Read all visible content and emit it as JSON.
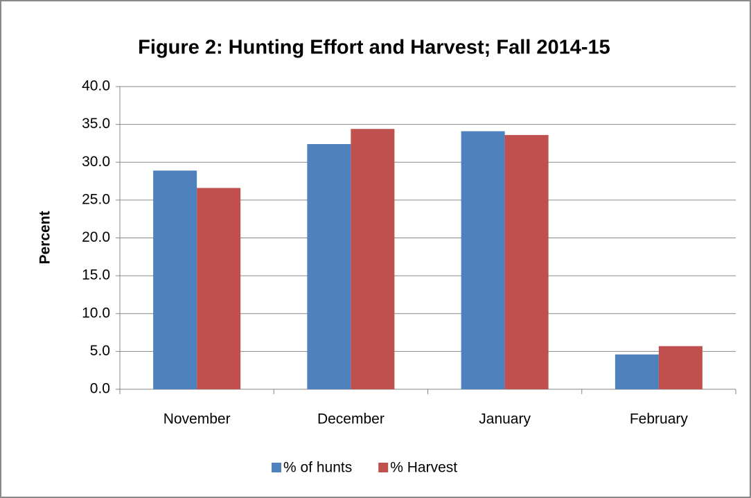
{
  "chart_data": {
    "type": "bar",
    "title": "Figure 2: Hunting Effort and Harvest; Fall 2014-15",
    "y_label": "Percent",
    "categories": [
      "November",
      "December",
      "January",
      "February"
    ],
    "series": [
      {
        "name": "% of hunts",
        "color": "#4f81bd",
        "values": [
          28.9,
          32.4,
          34.1,
          4.6
        ]
      },
      {
        "name": "% Harvest",
        "color": "#c0504d",
        "values": [
          26.6,
          34.4,
          33.6,
          5.7
        ]
      }
    ],
    "ylim": [
      0,
      40
    ],
    "yticks": [
      {
        "value": 0,
        "label": "0.0"
      },
      {
        "value": 5,
        "label": "5.0"
      },
      {
        "value": 10,
        "label": "10.0"
      },
      {
        "value": 15,
        "label": "15.0"
      },
      {
        "value": 20,
        "label": "20.0"
      },
      {
        "value": 25,
        "label": "25.0"
      },
      {
        "value": 30,
        "label": "30.0"
      },
      {
        "value": 35,
        "label": "35.0"
      },
      {
        "value": 40,
        "label": "40.0"
      }
    ],
    "grid": true,
    "legend": "bottom"
  }
}
